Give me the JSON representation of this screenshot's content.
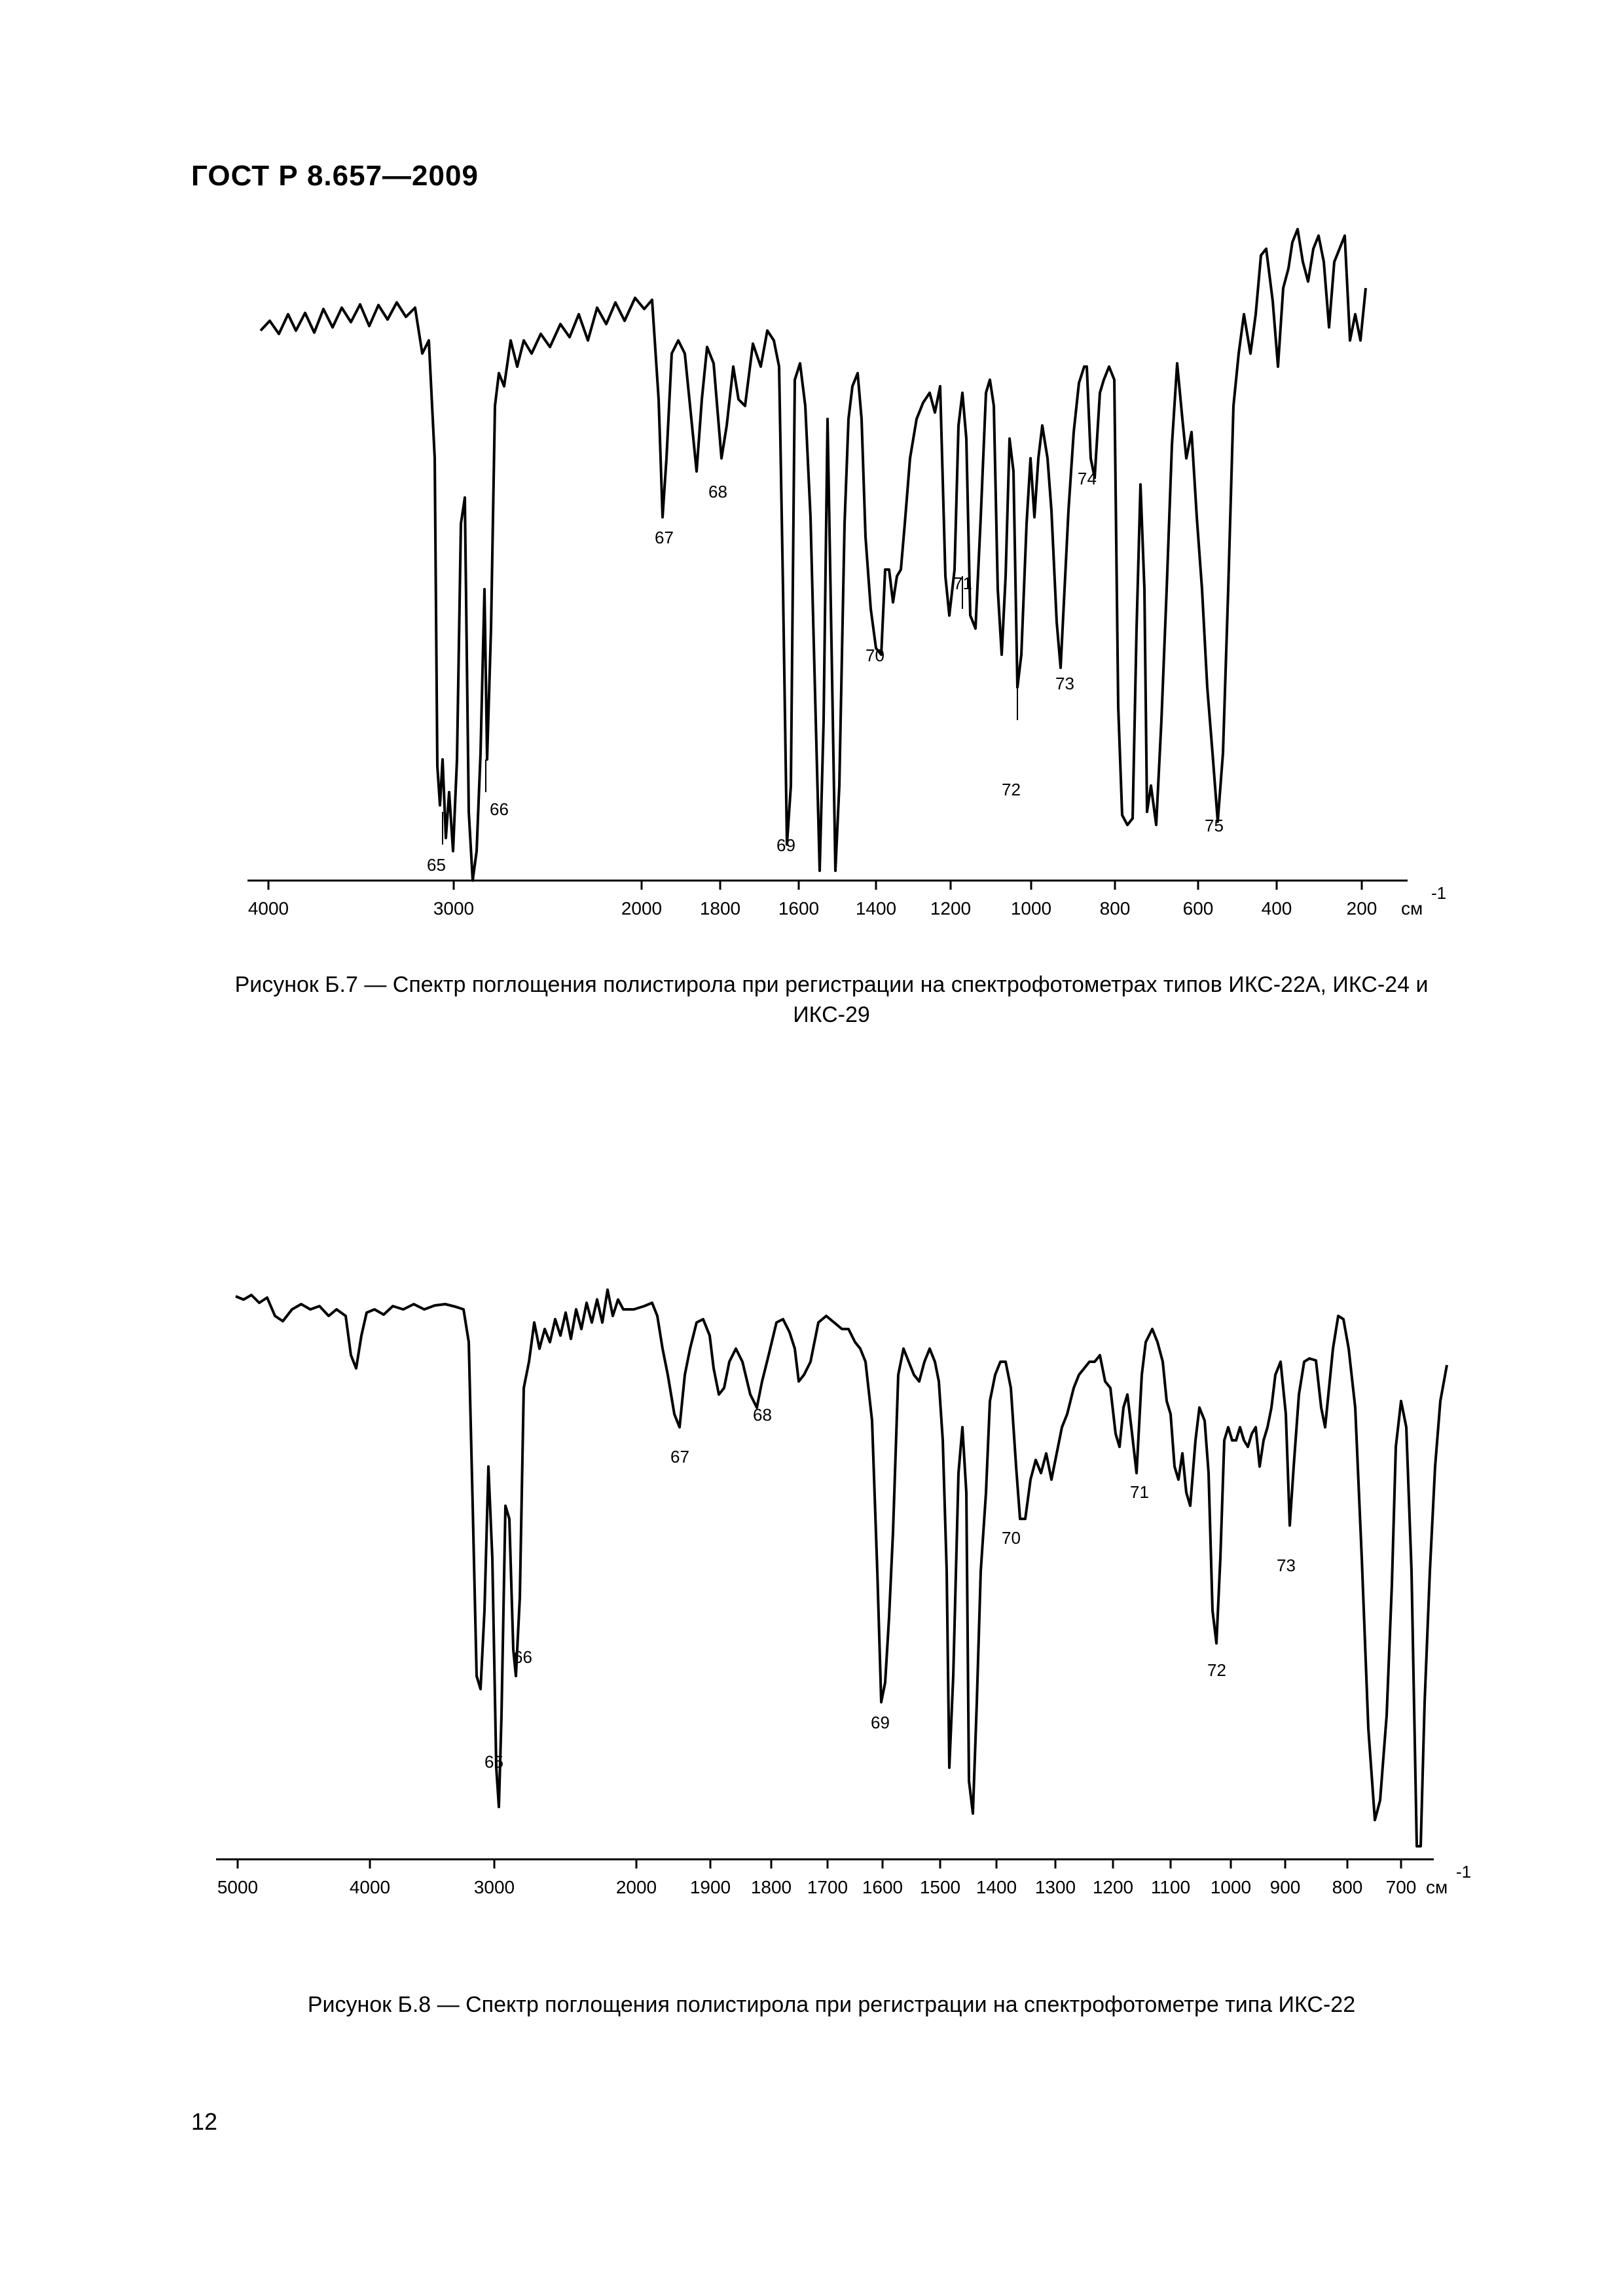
{
  "header": "ГОСТ Р 8.657—2009",
  "page_number": "12",
  "chart_data": [
    {
      "type": "line",
      "caption": "Рисунок Б.7 — Спектр поглощения полистирола при регистрации на спектрофотометрах типов ИКС-22А, ИКС-24 и ИКС-29",
      "unit": "см",
      "unit_sup": "-1",
      "x_ticks": [
        "4000",
        "3000",
        "2000",
        "1800",
        "1600",
        "1400",
        "1200",
        "1000",
        "800",
        "600",
        "400",
        "200"
      ],
      "peaks": [
        {
          "label": "65",
          "x": 3060
        },
        {
          "label": "66",
          "x": 2850
        },
        {
          "label": "67",
          "x": 1942
        },
        {
          "label": "68",
          "x": 1802
        },
        {
          "label": "69",
          "x": 1601
        },
        {
          "label": "70",
          "x": 1372
        },
        {
          "label": "71",
          "x": 1154
        },
        {
          "label": "72",
          "x": 1028
        },
        {
          "label": "73",
          "x": 906
        },
        {
          "label": "74",
          "x": 842
        },
        {
          "label": "75",
          "x": 540
        }
      ]
    },
    {
      "type": "line",
      "caption": "Рисунок Б.8 — Спектр поглощения полистирола при регистрации на спектрофотометре типа ИКС-22",
      "unit": "см",
      "unit_sup": "-1",
      "x_ticks": [
        "5000",
        "4000",
        "3000",
        "2000",
        "1900",
        "1800",
        "1700",
        "1600",
        "1500",
        "1400",
        "1300",
        "1200",
        "1100",
        "1000",
        "900",
        "800",
        "700"
      ],
      "peaks": [
        {
          "label": "65",
          "x": 3030
        },
        {
          "label": "66",
          "x": 2920
        },
        {
          "label": "67",
          "x": 1942
        },
        {
          "label": "68",
          "x": 1802
        },
        {
          "label": "69",
          "x": 1601
        },
        {
          "label": "70",
          "x": 1372
        },
        {
          "label": "71",
          "x": 1154
        },
        {
          "label": "72",
          "x": 1028
        },
        {
          "label": "73",
          "x": 906
        }
      ]
    }
  ]
}
